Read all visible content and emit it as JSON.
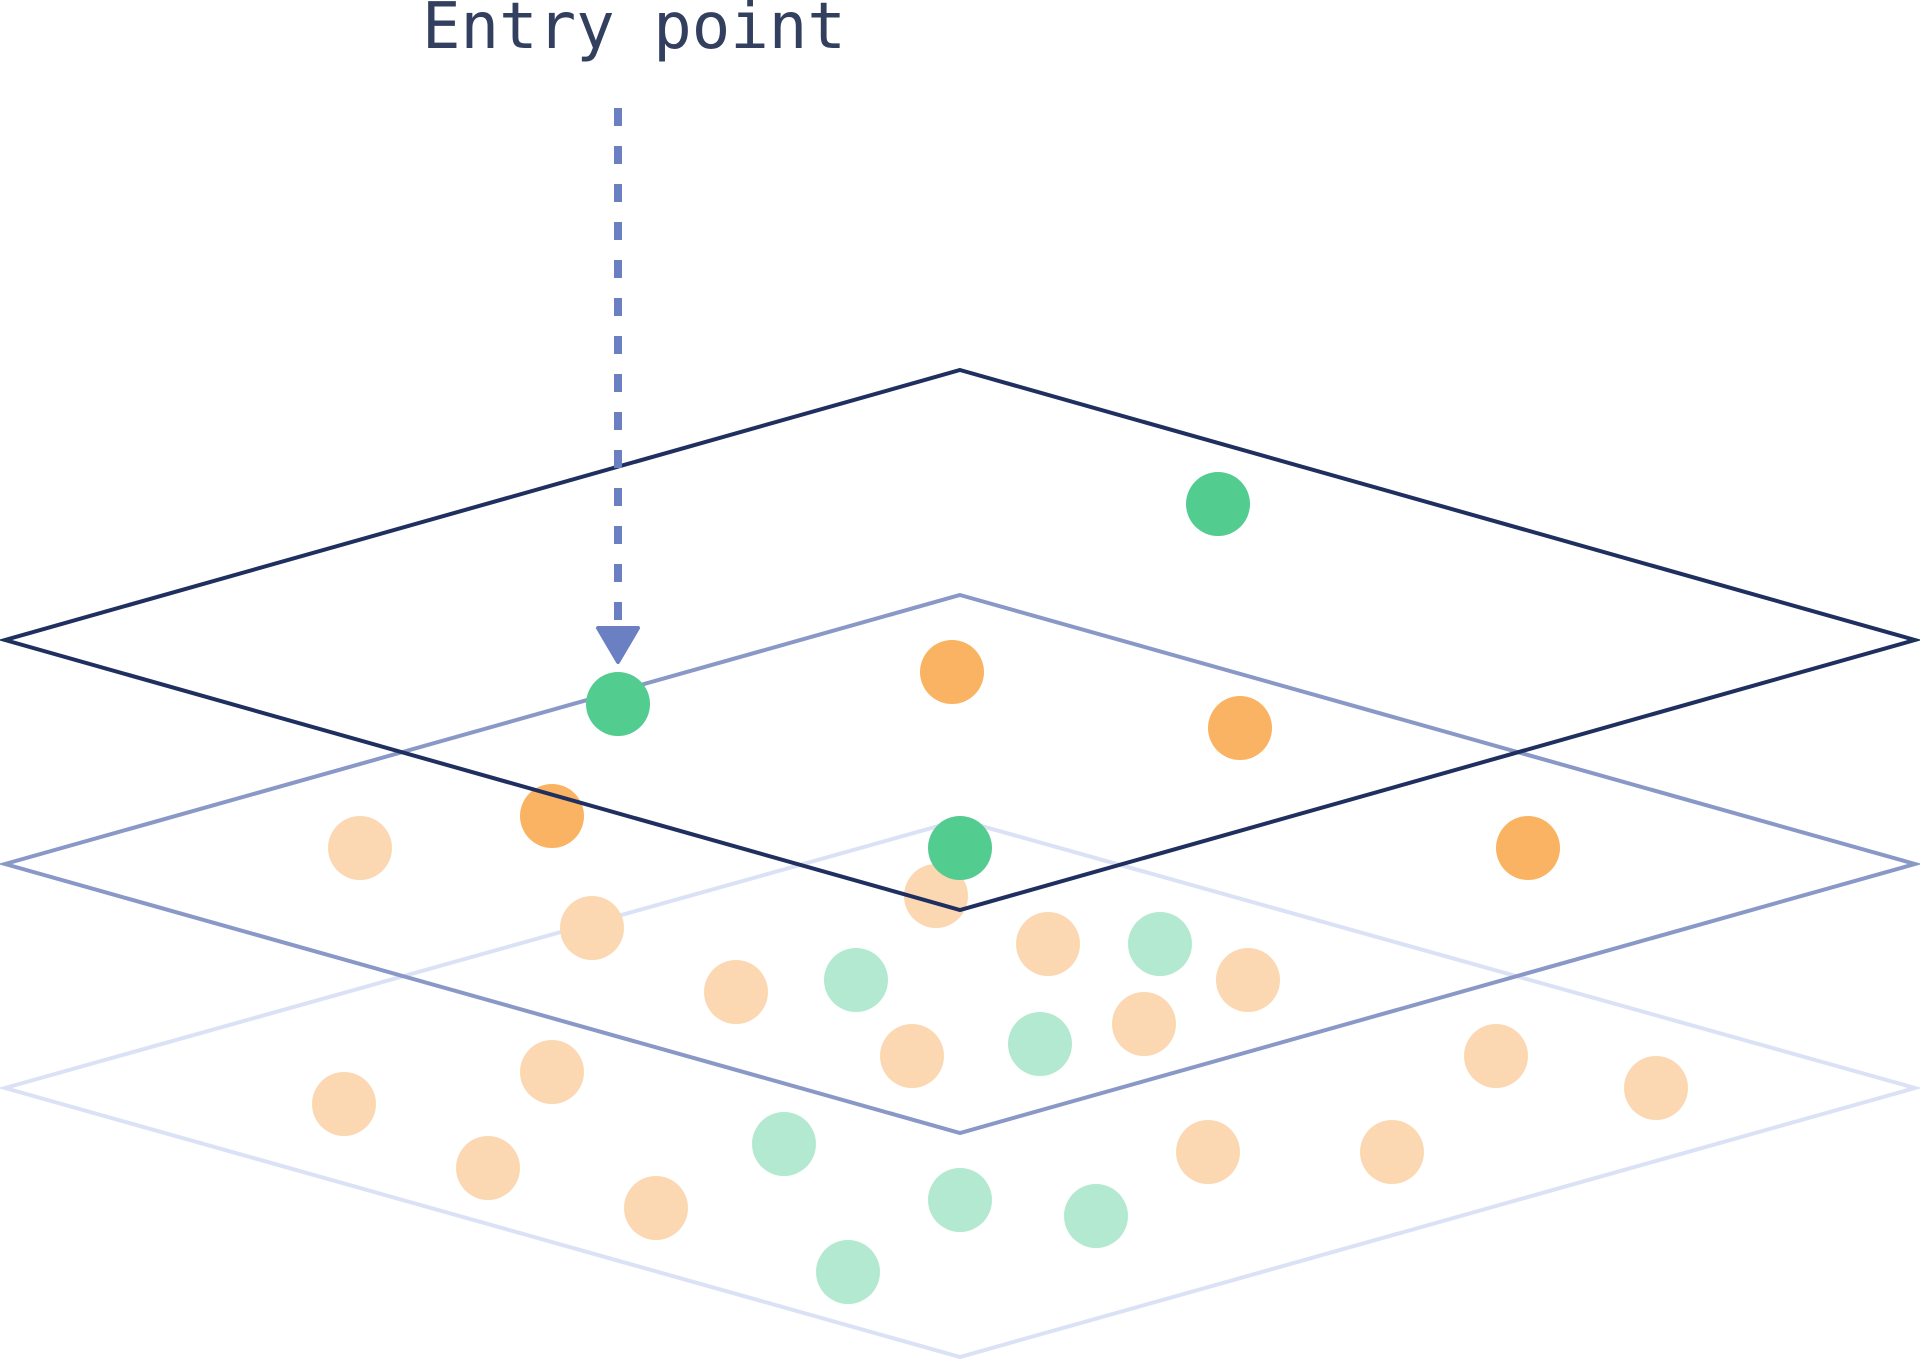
{
  "diagram": {
    "label": "Entry point",
    "colors": {
      "text": "#323f5e",
      "arrow": "#6b80c2",
      "layer_top": "#1f2f5f",
      "layer_middle": "#8a98c8",
      "layer_bottom": "#dce2f6",
      "node_green": "#52cc8f",
      "node_orange": "#f9b362",
      "node_green_faded": "#b3e9d1",
      "node_orange_faded": "#fbd8b1"
    },
    "layers": [
      {
        "id": "layer-top",
        "nodes": [
          {
            "tone": "green"
          }
        ]
      },
      {
        "id": "layer-middle",
        "nodes": [
          {
            "tone": "green"
          },
          {
            "tone": "orange"
          },
          {
            "tone": "orange"
          },
          {
            "tone": "orange"
          },
          {
            "tone": "green"
          },
          {
            "tone": "orange"
          }
        ]
      },
      {
        "id": "layer-bottom",
        "nodes": [
          {
            "tone": "orange-faded"
          },
          {
            "tone": "orange-faded"
          },
          {
            "tone": "orange-faded"
          },
          {
            "tone": "orange-faded"
          },
          {
            "tone": "green-faded"
          },
          {
            "tone": "orange-faded"
          },
          {
            "tone": "green-faded"
          },
          {
            "tone": "orange-faded"
          },
          {
            "tone": "orange-faded"
          },
          {
            "tone": "green-faded"
          },
          {
            "tone": "orange-faded"
          },
          {
            "tone": "orange-faded"
          },
          {
            "tone": "orange-faded"
          },
          {
            "tone": "orange-faded"
          },
          {
            "tone": "green-faded"
          },
          {
            "tone": "orange-faded"
          },
          {
            "tone": "green-faded"
          },
          {
            "tone": "green-faded"
          },
          {
            "tone": "green-faded"
          },
          {
            "tone": "orange-faded"
          },
          {
            "tone": "orange-faded"
          },
          {
            "tone": "orange-faded"
          },
          {
            "tone": "orange-faded"
          }
        ]
      }
    ]
  }
}
